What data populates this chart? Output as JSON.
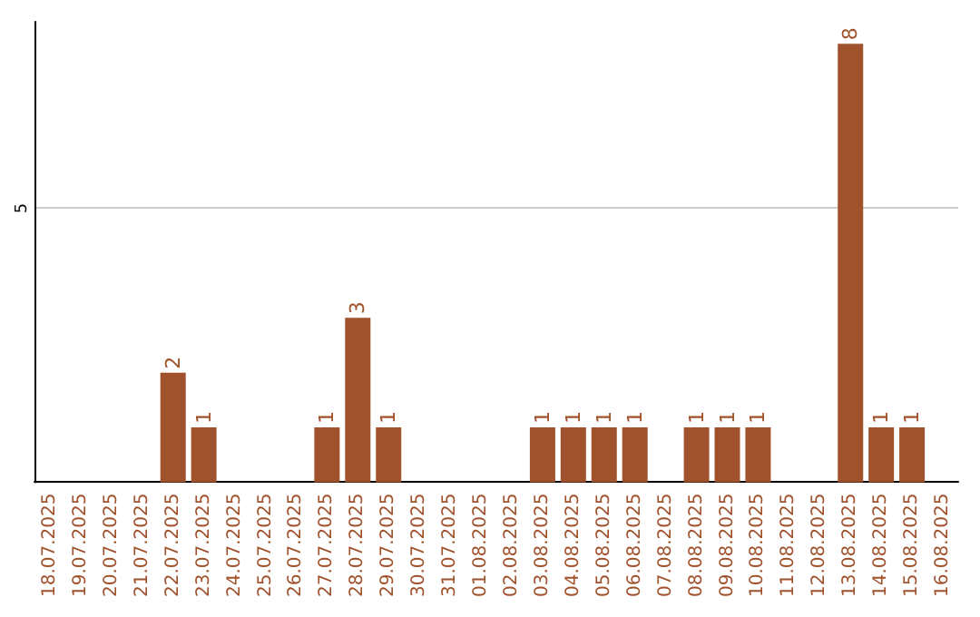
{
  "chart_data": {
    "type": "bar",
    "categories": [
      "18.07.2025",
      "19.07.2025",
      "20.07.2025",
      "21.07.2025",
      "22.07.2025",
      "23.07.2025",
      "24.07.2025",
      "25.07.2025",
      "26.07.2025",
      "27.07.2025",
      "28.07.2025",
      "29.07.2025",
      "30.07.2025",
      "31.07.2025",
      "01.08.2025",
      "02.08.2025",
      "03.08.2025",
      "04.08.2025",
      "05.08.2025",
      "06.08.2025",
      "07.08.2025",
      "08.08.2025",
      "09.08.2025",
      "10.08.2025",
      "11.08.2025",
      "12.08.2025",
      "13.08.2025",
      "14.08.2025",
      "15.08.2025",
      "16.08.2025"
    ],
    "values": [
      0,
      0,
      0,
      0,
      2,
      1,
      0,
      0,
      0,
      1,
      3,
      1,
      0,
      0,
      0,
      0,
      1,
      1,
      1,
      1,
      0,
      1,
      1,
      1,
      0,
      0,
      8,
      1,
      1,
      0
    ],
    "value_labels": [
      null,
      null,
      null,
      null,
      "2",
      "1",
      null,
      null,
      null,
      "1",
      "3",
      "1",
      null,
      null,
      null,
      null,
      "1",
      "1",
      "1",
      "1",
      null,
      "1",
      "1",
      "1",
      null,
      null,
      "8",
      "1",
      "1",
      null
    ],
    "color": "#a0522d",
    "ylim": [
      0,
      8.4
    ],
    "yticks": [
      5
    ],
    "grid": "y"
  }
}
